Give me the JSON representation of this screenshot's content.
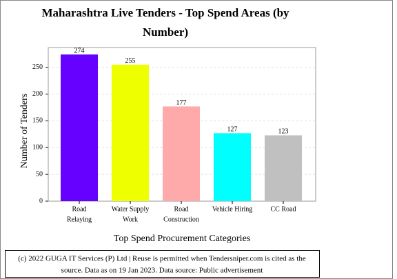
{
  "chart_data": {
    "type": "bar",
    "title": [
      "Maharashtra Live Tenders - Top Spend Areas (by",
      "Number)"
    ],
    "categories": [
      [
        "Road",
        "Relaying"
      ],
      [
        "Water Supply",
        "Work"
      ],
      [
        "Road",
        "Construction"
      ],
      [
        "Vehicle Hiring"
      ],
      [
        "CC Road"
      ]
    ],
    "values": [
      274,
      255,
      177,
      127,
      123
    ],
    "colors": [
      "#6600ff",
      "#eeff00",
      "#ffaaaa",
      "#00ffff",
      "#c0c0c0"
    ],
    "ylim": [
      0,
      287
    ],
    "yticks": [
      0,
      50,
      100,
      150,
      200,
      250
    ],
    "grid": true,
    "y_label": "Number of Tenders",
    "x_label": "Top Spend Procurement Categories"
  },
  "footer": [
    "(c) 2022 GUGA IT Services (P) Ltd | Reuse is permitted when Tendersniper.com is cited as the",
    "source. Data as on 19 Jan 2023. Data source: Public advertisement"
  ]
}
